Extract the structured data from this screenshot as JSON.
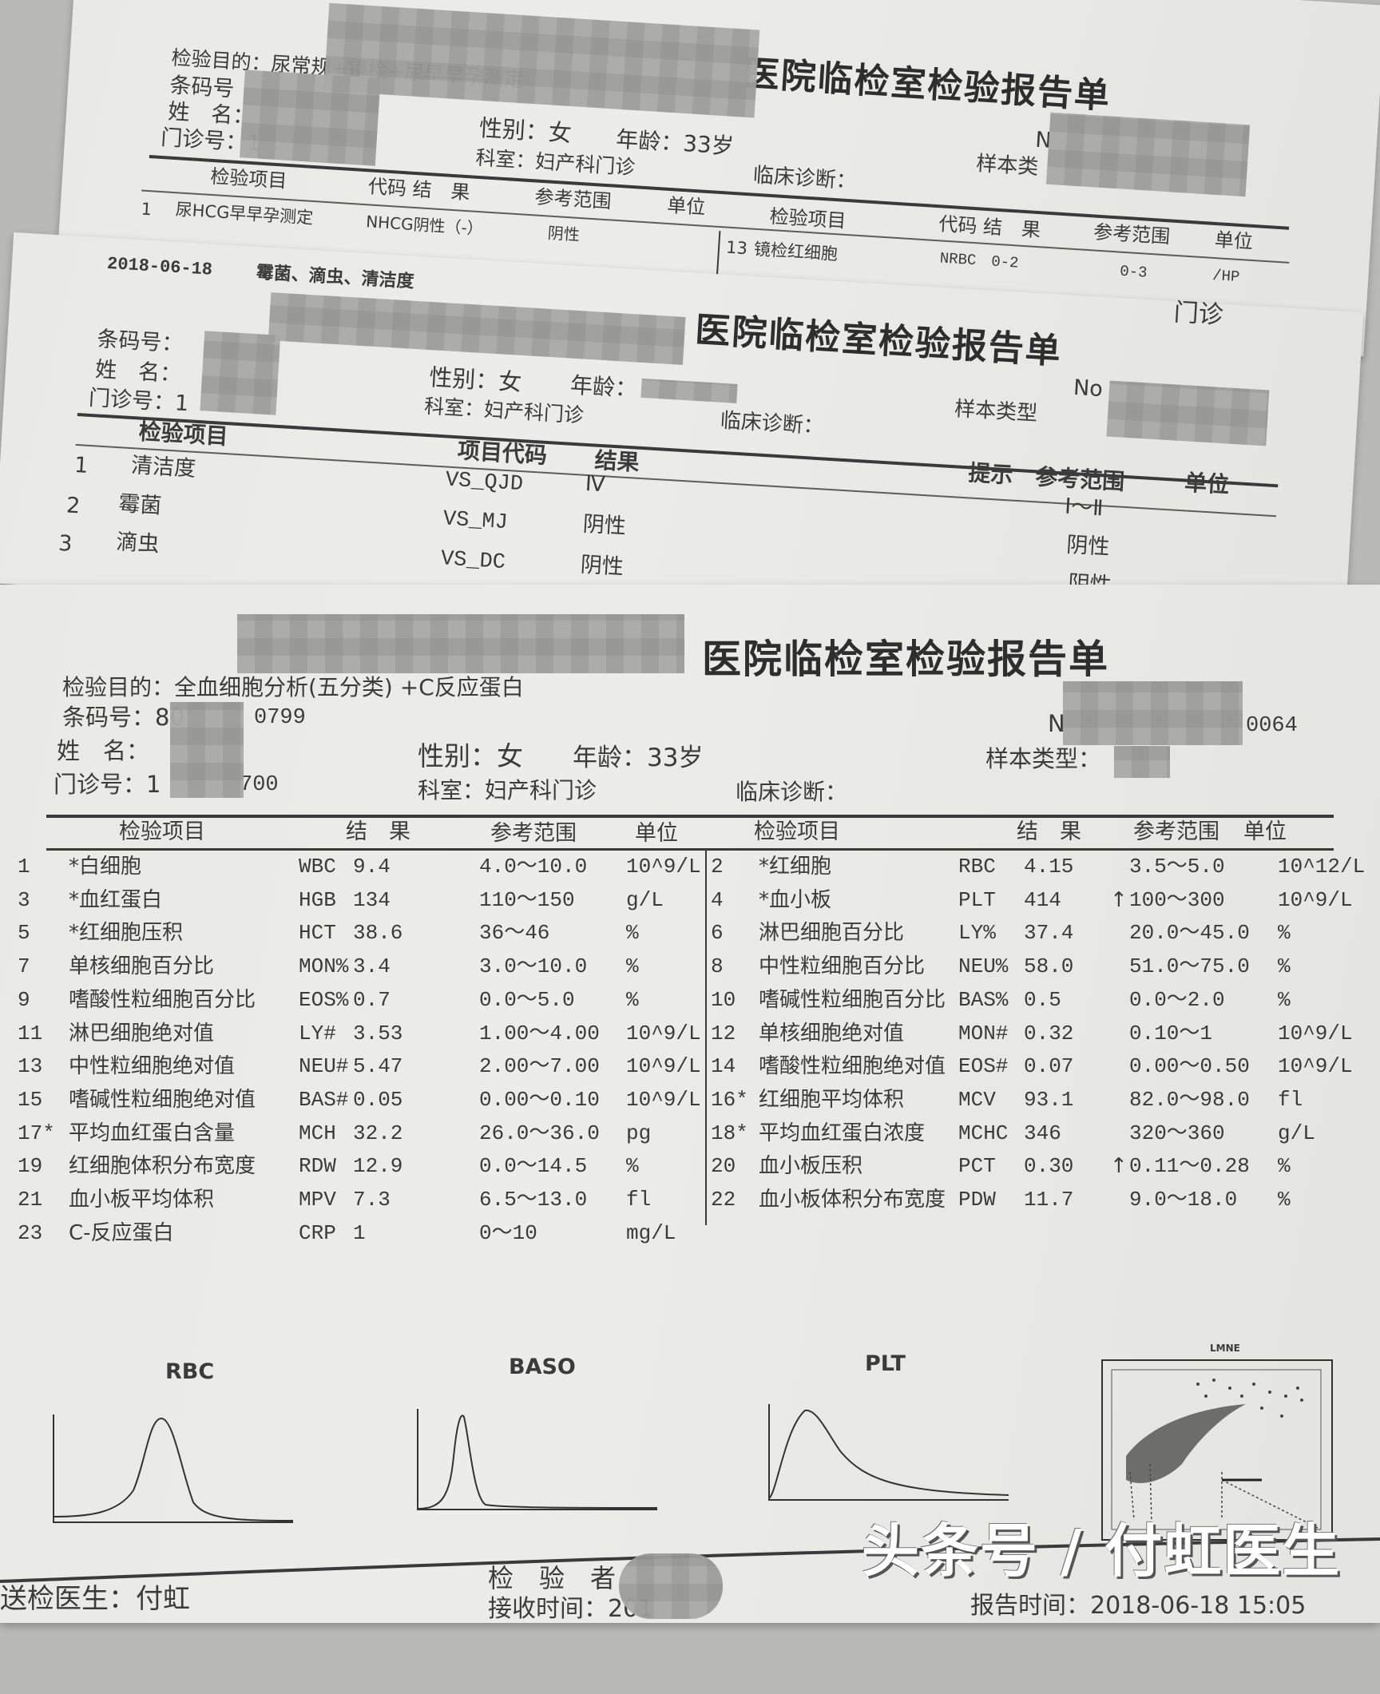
{
  "sheet1": {
    "purpose": "检验目的：尿常规+镜检+尿早早孕测定",
    "barcode_label": "条码号",
    "name_label": "姓　名：",
    "clinic_label": "门诊号：1",
    "title": "医院临检室检验报告单",
    "gender": "性别：女",
    "age": "年龄：33岁",
    "dept": "科室：妇产科门诊",
    "diagnosis": "临床诊断：",
    "no_label": "N",
    "sample_type": "样本类",
    "headers_left": [
      "检验项目",
      "代码 结　果",
      "参考范围",
      "单位"
    ],
    "headers_right": [
      "检验项目",
      "代码 结　果",
      "参考范围",
      "单位"
    ],
    "row_left": {
      "num": "1",
      "item": "尿HCG早早孕测定",
      "code_result": "NHCG阴性（-）",
      "range": "阴性"
    },
    "row_right": {
      "num": "13",
      "item": "镜检红细胞",
      "code_result": "NRBC　0-2",
      "range": "0-3",
      "unit": "/HP"
    }
  },
  "sheet2": {
    "date_line": "2018-06-18",
    "tests_line": "霉菌、滴虫、清洁度",
    "clinic_tag": "门诊",
    "title": "医院临检室检验报告单",
    "barcode_label": "条码号：",
    "name_label": "姓　名：",
    "clinic_label": "门诊号：1",
    "gender": "性别：女",
    "age": "年龄：",
    "dept": "科室：妇产科门诊",
    "diagnosis": "临床诊断：",
    "no_label": "No",
    "sample_type": "样本类型",
    "headers": {
      "item": "检验项目",
      "code": "项目代码",
      "result": "结果",
      "hint": "提示",
      "range": "参考范围",
      "unit": "单位"
    },
    "rows": [
      {
        "num": "1",
        "item": "清洁度",
        "code": "VS_QJD",
        "result": "Ⅳ",
        "range": "Ⅰ～Ⅱ"
      },
      {
        "num": "2",
        "item": "霉菌",
        "code": "VS_MJ",
        "result": "阴性",
        "range": "阴性"
      },
      {
        "num": "3",
        "item": "滴虫",
        "code": "VS_DC",
        "result": "阴性",
        "range": "阴性"
      }
    ]
  },
  "sheet3": {
    "title": "医院临检室检验报告单",
    "purpose": "检验目的：全血细胞分析(五分类) +C反应蛋白",
    "barcode": "条码号：80",
    "barcode_tail": "0799",
    "name_label": "姓　名：",
    "clinic_label": "门诊号：1",
    "clinic_tail": "700",
    "gender": "性别：女",
    "age": "年龄：33岁",
    "dept": "科室：妇产科门诊",
    "diagnosis": "临床诊断：",
    "no_label": "N",
    "no_tail": "0064",
    "sample_type": "样本类型：",
    "headers": {
      "item": "检验项目",
      "result": "结　果",
      "range": "参考范围",
      "unit": "单位"
    },
    "left_rows": [
      {
        "num": "1",
        "item": "*白细胞",
        "code": "WBC",
        "value": "9.4",
        "flag": "",
        "range": "4.0～10.0",
        "unit": "10^9/L"
      },
      {
        "num": "3",
        "item": "*血红蛋白",
        "code": "HGB",
        "value": "134",
        "flag": "",
        "range": "110～150",
        "unit": "g/L"
      },
      {
        "num": "5",
        "item": "*红细胞压积",
        "code": "HCT",
        "value": "38.6",
        "flag": "",
        "range": "36～46",
        "unit": "%"
      },
      {
        "num": "7",
        "item": "单核细胞百分比",
        "code": "MON%",
        "value": "3.4",
        "flag": "",
        "range": "3.0～10.0",
        "unit": "%"
      },
      {
        "num": "9",
        "item": "嗜酸性粒细胞百分比",
        "code": "EOS%",
        "value": "0.7",
        "flag": "",
        "range": "0.0～5.0",
        "unit": "%"
      },
      {
        "num": "11",
        "item": "淋巴细胞绝对值",
        "code": "LY#",
        "value": "3.53",
        "flag": "",
        "range": "1.00～4.00",
        "unit": "10^9/L"
      },
      {
        "num": "13",
        "item": "中性粒细胞绝对值",
        "code": "NEU#",
        "value": "5.47",
        "flag": "",
        "range": "2.00～7.00",
        "unit": "10^9/L"
      },
      {
        "num": "15",
        "item": "嗜碱性粒细胞绝对值",
        "code": "BAS#",
        "value": "0.05",
        "flag": "",
        "range": "0.00～0.10",
        "unit": "10^9/L"
      },
      {
        "num": "17*",
        "item": "平均血红蛋白含量",
        "code": "MCH",
        "value": "32.2",
        "flag": "",
        "range": "26.0～36.0",
        "unit": "pg"
      },
      {
        "num": "19",
        "item": "红细胞体积分布宽度",
        "code": "RDW",
        "value": "12.9",
        "flag": "",
        "range": "0.0～14.5",
        "unit": "%"
      },
      {
        "num": "21",
        "item": "血小板平均体积",
        "code": "MPV",
        "value": "7.3",
        "flag": "",
        "range": "6.5～13.0",
        "unit": "fl"
      },
      {
        "num": "23",
        "item": "C-反应蛋白",
        "code": "CRP",
        "value": "1",
        "flag": "",
        "range": "0～10",
        "unit": "mg/L"
      }
    ],
    "right_rows": [
      {
        "num": "2",
        "item": "*红细胞",
        "code": "RBC",
        "value": "4.15",
        "flag": "",
        "range": "3.5～5.0",
        "unit": "10^12/L"
      },
      {
        "num": "4",
        "item": "*血小板",
        "code": "PLT",
        "value": "414",
        "flag": "↑",
        "range": "100～300",
        "unit": "10^9/L"
      },
      {
        "num": "6",
        "item": "淋巴细胞百分比",
        "code": "LY%",
        "value": "37.4",
        "flag": "",
        "range": "20.0～45.0",
        "unit": "%"
      },
      {
        "num": "8",
        "item": "中性粒细胞百分比",
        "code": "NEU%",
        "value": "58.0",
        "flag": "",
        "range": "51.0～75.0",
        "unit": "%"
      },
      {
        "num": "10",
        "item": "嗜碱性粒细胞百分比",
        "code": "BAS%",
        "value": "0.5",
        "flag": "",
        "range": "0.0～2.0",
        "unit": "%"
      },
      {
        "num": "12",
        "item": "单核细胞绝对值",
        "code": "MON#",
        "value": "0.32",
        "flag": "",
        "range": "0.10～1",
        "unit": "10^9/L"
      },
      {
        "num": "14",
        "item": "嗜酸性粒细胞绝对值",
        "code": "EOS#",
        "value": "0.07",
        "flag": "",
        "range": "0.00～0.50",
        "unit": "10^9/L"
      },
      {
        "num": "16*",
        "item": "红细胞平均体积",
        "code": "MCV",
        "value": "93.1",
        "flag": "",
        "range": "82.0～98.0",
        "unit": "fl"
      },
      {
        "num": "18*",
        "item": "平均血红蛋白浓度",
        "code": "MCHC",
        "value": "346",
        "flag": "",
        "range": "320～360",
        "unit": "g/L"
      },
      {
        "num": "20",
        "item": "血小板压积",
        "code": "PCT",
        "value": "0.30",
        "flag": "↑",
        "range": "0.11～0.28",
        "unit": "%"
      },
      {
        "num": "22",
        "item": "血小板体积分布宽度",
        "code": "PDW",
        "value": "11.7",
        "flag": "",
        "range": "9.0～18.0",
        "unit": "%"
      }
    ],
    "histograms": {
      "rbc": "RBC",
      "baso": "BASO",
      "plt": "PLT",
      "scatter": "LMNE"
    },
    "footer": {
      "doctor": "送检医生：付虹",
      "examiner": "检　验　者",
      "received": "接收时间：201",
      "report_time": "报告时间：2018-06-18 15:05"
    }
  },
  "watermark": "头条号 / 付虹医生"
}
